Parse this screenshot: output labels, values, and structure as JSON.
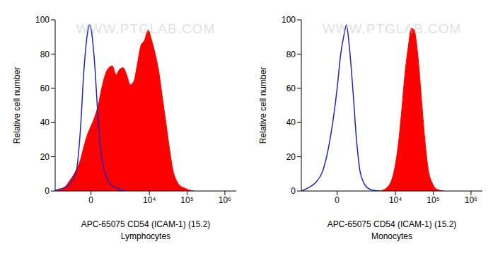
{
  "chart_data": [
    {
      "type": "histogram",
      "title": "Lymphocytes",
      "xlabel": "APC-65075 CD54 (ICAM-1) (15.2)",
      "ylabel": "Relative cell number",
      "annotations": [
        "WWW.PTGLAB.COM"
      ],
      "xlim": [
        -2500,
        2000000
      ],
      "xticks": [
        0,
        {
          "value": 10000,
          "label": "10⁴"
        },
        {
          "value": 100000,
          "label": "10⁵"
        },
        {
          "value": 1000000,
          "label": "10⁶"
        }
      ],
      "ylim": [
        0,
        100
      ],
      "yticks": [
        0,
        20,
        40,
        60,
        80,
        100
      ],
      "grid": false,
      "x": [
        -2470,
        -1980,
        -1570,
        -1240,
        -975,
        -747,
        -560,
        -398,
        -256,
        -125,
        -50,
        0,
        125,
        256,
        398,
        560,
        747,
        975,
        1240,
        1570,
        1980,
        2470,
        3090,
        3850,
        4790,
        5960,
        7420,
        9230,
        11500,
        14300,
        17700,
        22000,
        27400,
        34000,
        42300,
        52600,
        65300,
        81200,
        101000,
        125000,
        156000
      ],
      "series": [
        {
          "type": "area",
          "color": "#ff0000",
          "values": [
            0,
            0.5,
            1.5,
            3,
            6,
            9,
            13,
            18,
            26,
            33,
            36,
            38,
            43,
            50,
            60,
            68,
            72,
            73,
            68,
            71,
            72,
            68,
            62,
            64,
            74,
            85,
            88,
            94,
            88,
            80,
            70,
            55,
            40,
            25,
            12,
            6,
            3,
            2,
            1,
            0.3,
            0
          ]
        },
        {
          "type": "line",
          "color": "#2424b8",
          "values": [
            0.5,
            1,
            1.5,
            2.5,
            4,
            7,
            13,
            35,
            70,
            92,
            97,
            95,
            75,
            42,
            20,
            10,
            5,
            3,
            2,
            1,
            0.5,
            0,
            null,
            null,
            null,
            null,
            null,
            null,
            null,
            null,
            null,
            null,
            null,
            null,
            null,
            null,
            null,
            null,
            null,
            null,
            null
          ]
        }
      ]
    },
    {
      "type": "histogram",
      "title": "Monocytes",
      "xlabel": "APC-65075 CD54 (ICAM-1) (15.2)",
      "ylabel": "Relative cell number",
      "annotations": [
        "WWW.PTGLAB.COM"
      ],
      "xlim": [
        -2500,
        2000000
      ],
      "xticks": [
        0,
        {
          "value": 10000,
          "label": "10⁴"
        },
        {
          "value": 100000,
          "label": "10⁵"
        },
        {
          "value": 1000000,
          "label": "10⁶"
        }
      ],
      "ylim": [
        0,
        100
      ],
      "yticks": [
        0,
        20,
        40,
        60,
        80,
        100
      ],
      "grid": false,
      "x": [
        -2470,
        -1570,
        -975,
        -560,
        -256,
        0,
        125,
        256,
        340,
        460,
        630,
        840,
        1070,
        1370,
        1720,
        2470,
        3850,
        5960,
        7420,
        9230,
        11500,
        14300,
        17700,
        22000,
        26200,
        31200,
        38800,
        48200,
        60000,
        74300,
        92600,
        125000,
        194000
      ],
      "series": [
        {
          "type": "area",
          "color": "#ff0000",
          "values": [
            null,
            null,
            null,
            null,
            null,
            null,
            null,
            null,
            null,
            null,
            null,
            null,
            null,
            null,
            null,
            null,
            0,
            2,
            5,
            12,
            25,
            45,
            68,
            85,
            95,
            94,
            80,
            55,
            30,
            12,
            5,
            1,
            0
          ]
        },
        {
          "type": "line",
          "color": "#2424b8",
          "values": [
            0,
            2,
            5,
            12,
            30,
            60,
            80,
            92,
            97,
            85,
            60,
            30,
            12,
            5,
            2,
            0.5,
            0,
            null,
            null,
            null,
            null,
            null,
            null,
            null,
            null,
            null,
            null,
            null,
            null,
            null,
            null,
            null,
            null
          ]
        }
      ]
    }
  ]
}
